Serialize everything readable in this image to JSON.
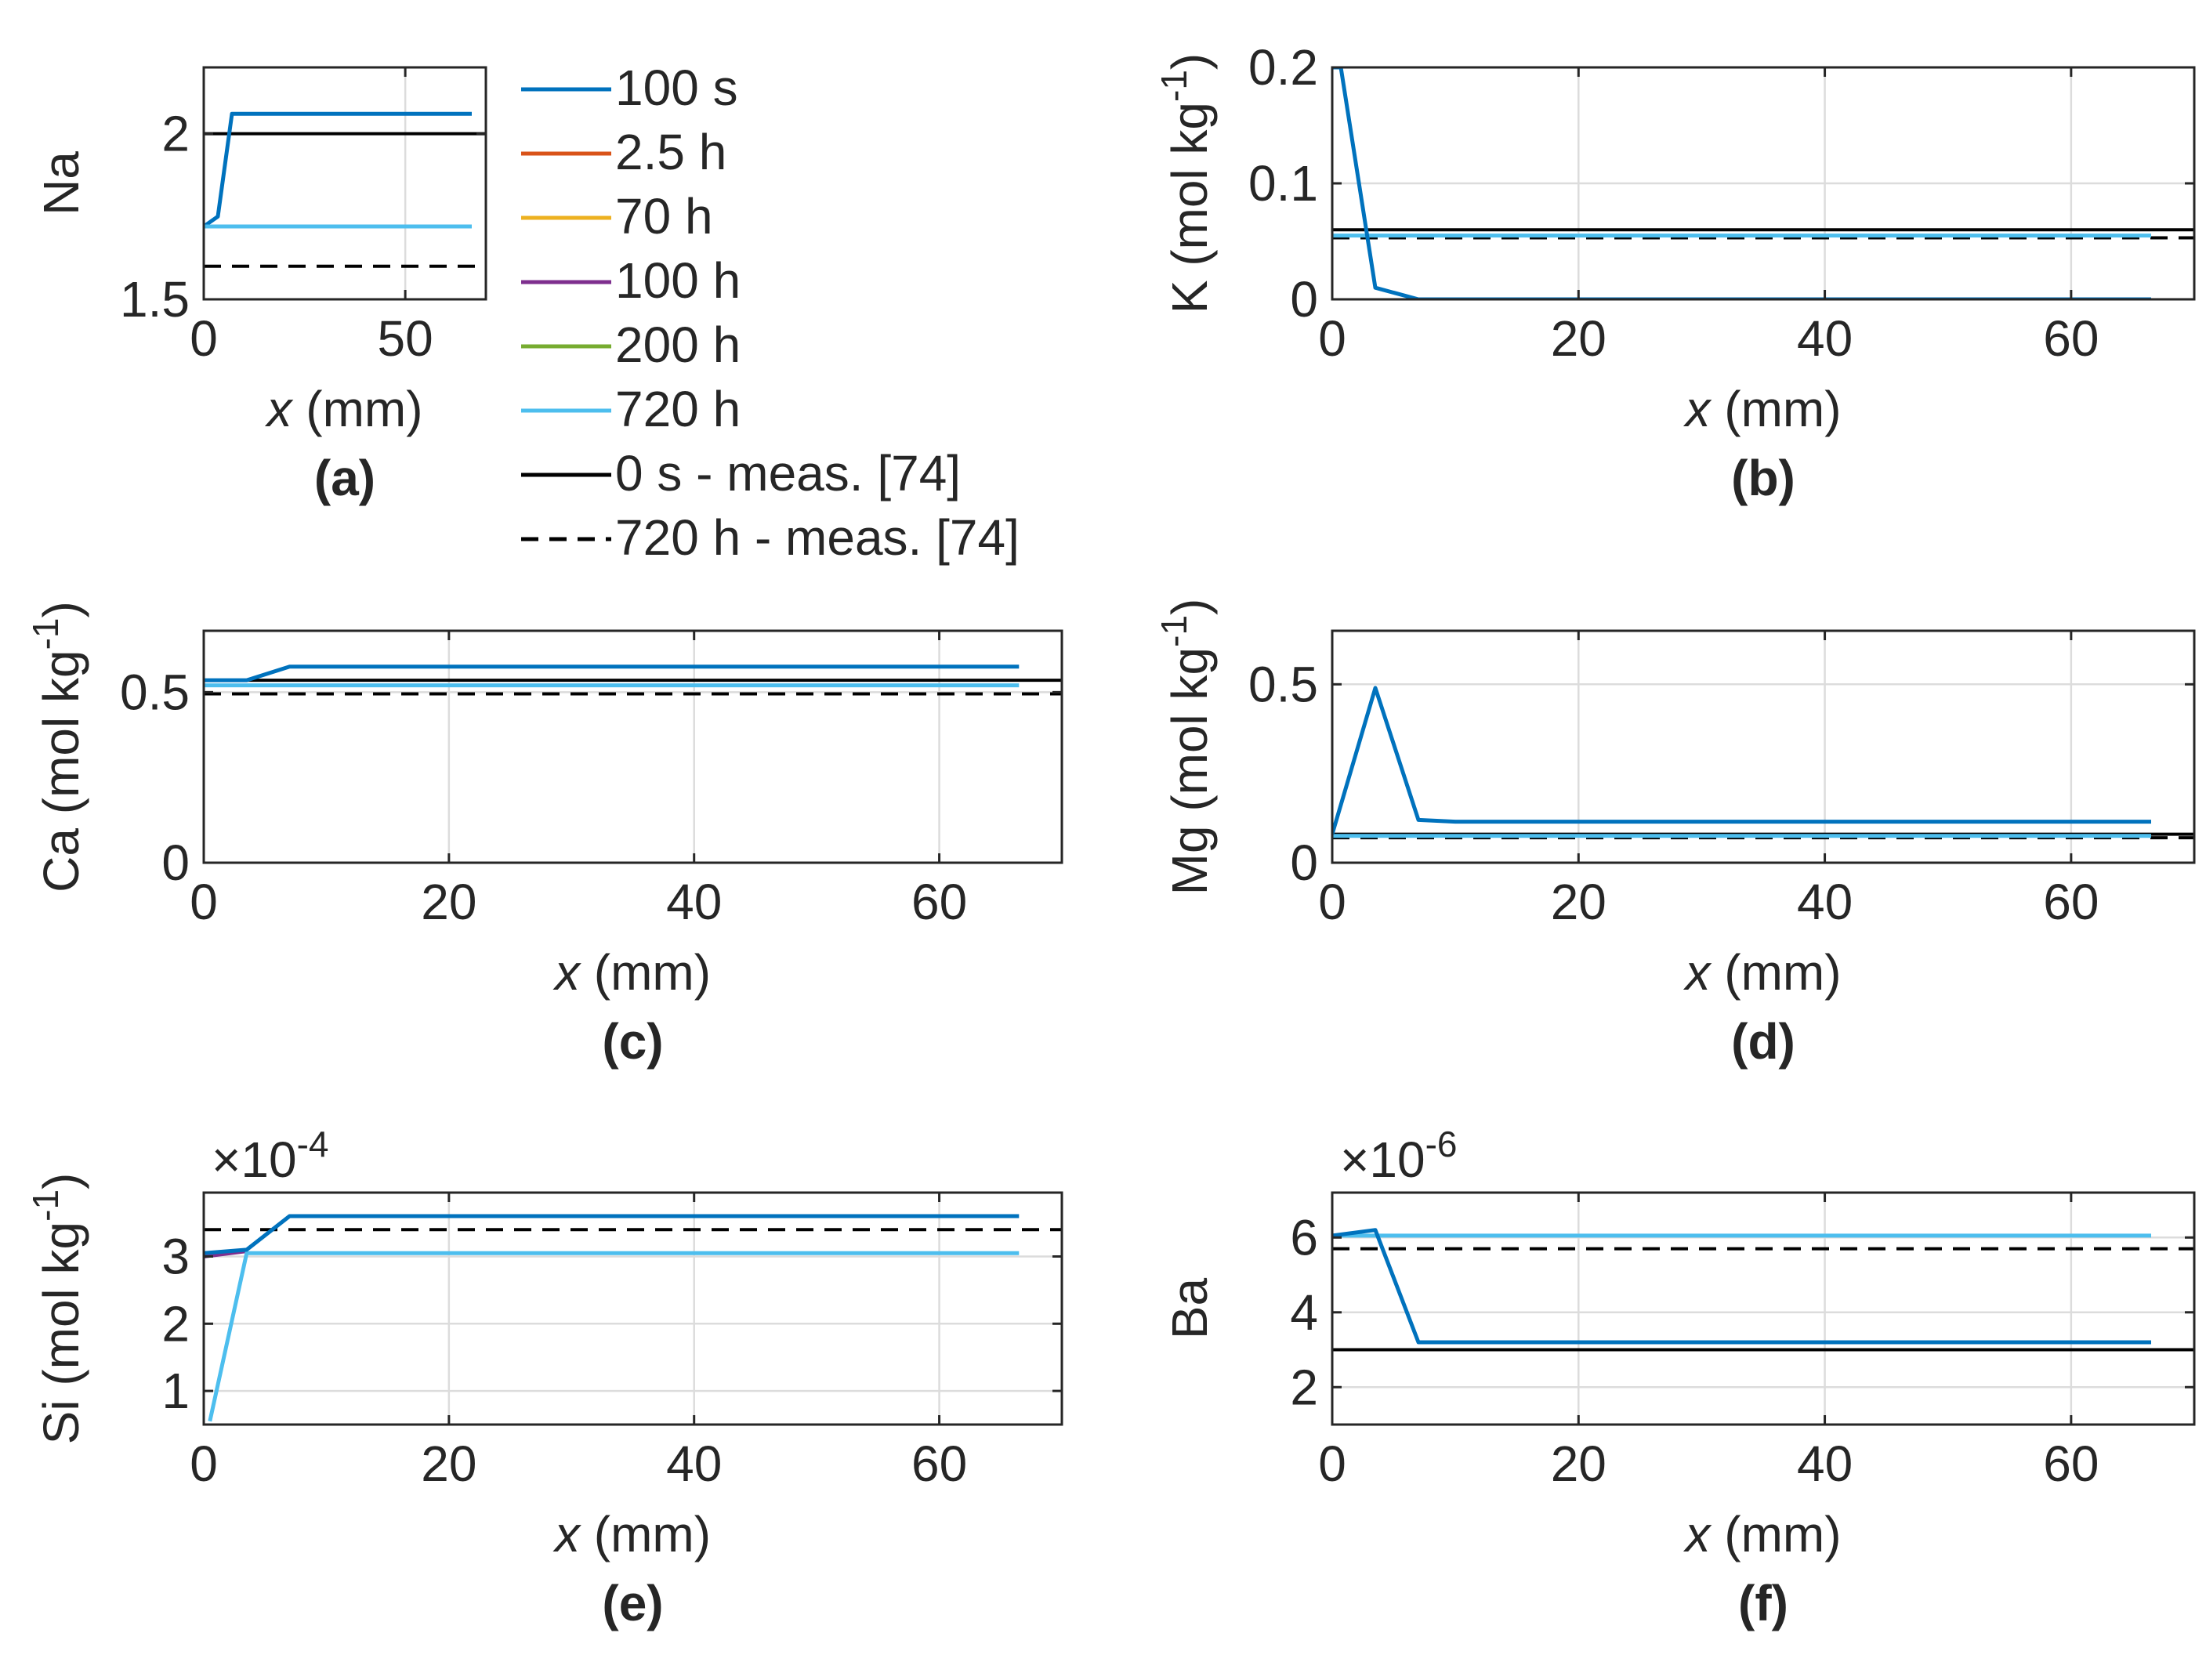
{
  "colors": {
    "s100s": "#0072BD",
    "s2_5h": "#D95319",
    "s70h": "#EDB120",
    "s100h": "#7E2F8E",
    "s200h": "#77AC30",
    "s720h": "#4DBEEE",
    "meas": "#000000",
    "grid": "#DCDCDC",
    "axis": "#262626"
  },
  "legend": {
    "position": "between panels (a) and (b)",
    "entries": [
      {
        "label": "100 s",
        "style": "solid",
        "color_key": "s100s"
      },
      {
        "label": "2.5 h",
        "style": "solid",
        "color_key": "s2_5h"
      },
      {
        "label": "70 h",
        "style": "solid",
        "color_key": "s70h"
      },
      {
        "label": "100 h",
        "style": "solid",
        "color_key": "s100h"
      },
      {
        "label": "200 h",
        "style": "solid",
        "color_key": "s200h"
      },
      {
        "label": "720 h",
        "style": "solid",
        "color_key": "s720h"
      },
      {
        "label": "0 s - meas. [74]",
        "style": "solid",
        "color_key": "meas"
      },
      {
        "label": "720 h - meas. [74]",
        "style": "dashed",
        "color_key": "meas"
      }
    ]
  },
  "chart_data": [
    {
      "id": "a",
      "type": "line",
      "panel_label": "(a)",
      "xlabel_italic": "x",
      "xlabel_rest": " (mm)",
      "ylabel_main": "Na",
      "ylabel_unit": "",
      "xlim": [
        0,
        70
      ],
      "ylim": [
        1.5,
        2.2
      ],
      "xticks": [
        0,
        50
      ],
      "yticks": [
        1.5,
        2
      ],
      "xtick_labels": [
        "0",
        "50"
      ],
      "ytick_labels": [
        "1.5",
        "2"
      ],
      "exponent": "",
      "grid": true,
      "series": [
        {
          "name": "100 s",
          "color_key": "s100s",
          "x": [
            0,
            3.5,
            7,
            66.5
          ],
          "y": [
            1.72,
            1.75,
            2.06,
            2.06
          ]
        },
        {
          "name": "720 h",
          "color_key": "s720h",
          "x": [
            0,
            66.5
          ],
          "y": [
            1.72,
            1.72
          ]
        }
      ],
      "hlines": [
        {
          "name": "0 s - meas. [74]",
          "y": 2.0,
          "style": "solid"
        },
        {
          "name": "720 h - meas. [74]",
          "y": 1.6,
          "style": "dashed"
        }
      ]
    },
    {
      "id": "b",
      "type": "line",
      "panel_label": "(b)",
      "xlabel_italic": "x",
      "xlabel_rest": " (mm)",
      "ylabel_main": "K (mol kg",
      "ylabel_unit": "-1",
      "xlim": [
        0,
        70
      ],
      "ylim": [
        0,
        0.2
      ],
      "xticks": [
        0,
        20,
        40,
        60
      ],
      "yticks": [
        0,
        0.1,
        0.2
      ],
      "xtick_labels": [
        "0",
        "20",
        "40",
        "60"
      ],
      "ytick_labels": [
        "0",
        "0.1",
        "0.2"
      ],
      "exponent": "",
      "grid": true,
      "series": [
        {
          "name": "720 h",
          "color_key": "s720h",
          "x": [
            0,
            66.5
          ],
          "y": [
            0.055,
            0.055
          ]
        },
        {
          "name": "100 s",
          "color_key": "s100s",
          "x": [
            0,
            0.7,
            3.5,
            7,
            66.5
          ],
          "y": [
            0.2,
            0.2,
            0.01,
            0.0,
            0.0
          ]
        }
      ],
      "hlines": [
        {
          "name": "0 s - meas. [74]",
          "y": 0.06,
          "style": "solid"
        },
        {
          "name": "720 h - meas. [74]",
          "y": 0.053,
          "style": "dashed"
        }
      ]
    },
    {
      "id": "c",
      "type": "line",
      "panel_label": "(c)",
      "xlabel_italic": "x",
      "xlabel_rest": " (mm)",
      "ylabel_main": "Ca (mol kg",
      "ylabel_unit": "-1",
      "xlim": [
        0,
        70
      ],
      "ylim": [
        0,
        0.68
      ],
      "xticks": [
        0,
        20,
        40,
        60
      ],
      "yticks": [
        0,
        0.5
      ],
      "xtick_labels": [
        "0",
        "20",
        "40",
        "60"
      ],
      "ytick_labels": [
        "0",
        "0.5"
      ],
      "exponent": "",
      "grid": true,
      "series": [
        {
          "name": "720 h",
          "color_key": "s720h",
          "x": [
            0,
            66.5
          ],
          "y": [
            0.52,
            0.52
          ]
        },
        {
          "name": "100 s",
          "color_key": "s100s",
          "x": [
            0,
            3.5,
            7,
            66.5
          ],
          "y": [
            0.535,
            0.535,
            0.575,
            0.575
          ]
        }
      ],
      "hlines": [
        {
          "name": "0 s - meas. [74]",
          "y": 0.535,
          "style": "solid"
        },
        {
          "name": "720 h - meas. [74]",
          "y": 0.495,
          "style": "dashed"
        }
      ]
    },
    {
      "id": "d",
      "type": "line",
      "panel_label": "(d)",
      "xlabel_italic": "x",
      "xlabel_rest": " (mm)",
      "ylabel_main": "Mg (mol kg",
      "ylabel_unit": "-1",
      "xlim": [
        0,
        70
      ],
      "ylim": [
        0,
        0.65
      ],
      "xticks": [
        0,
        20,
        40,
        60
      ],
      "yticks": [
        0,
        0.5
      ],
      "xtick_labels": [
        "0",
        "20",
        "40",
        "60"
      ],
      "ytick_labels": [
        "0",
        "0.5"
      ],
      "exponent": "",
      "grid": true,
      "series": [
        {
          "name": "720 h",
          "color_key": "s720h",
          "x": [
            0,
            66.5
          ],
          "y": [
            0.075,
            0.075
          ]
        },
        {
          "name": "100 s",
          "color_key": "s100s",
          "x": [
            0,
            3.5,
            7,
            10,
            66.5
          ],
          "y": [
            0.08,
            0.49,
            0.12,
            0.115,
            0.115
          ]
        }
      ],
      "hlines": [
        {
          "name": "0 s - meas. [74]",
          "y": 0.08,
          "style": "solid"
        },
        {
          "name": "720 h - meas. [74]",
          "y": 0.07,
          "style": "dashed"
        }
      ]
    },
    {
      "id": "e",
      "type": "line",
      "panel_label": "(e)",
      "xlabel_italic": "x",
      "xlabel_rest": " (mm)",
      "ylabel_main": "Si (mol kg",
      "ylabel_unit": "-1",
      "xlim": [
        0,
        70
      ],
      "ylim": [
        0.5,
        3.95
      ],
      "xticks": [
        0,
        20,
        40,
        60
      ],
      "yticks": [
        1,
        2,
        3
      ],
      "xtick_labels": [
        "0",
        "20",
        "40",
        "60"
      ],
      "ytick_labels": [
        "1",
        "2",
        "3"
      ],
      "exponent": "-4",
      "grid": true,
      "series": [
        {
          "name": "100 h",
          "color_key": "s100h",
          "x": [
            0,
            3.5
          ],
          "y": [
            3.0,
            3.08
          ]
        },
        {
          "name": "720 h",
          "color_key": "s720h",
          "x": [
            0.5,
            3.5,
            66.5
          ],
          "y": [
            0.55,
            3.05,
            3.05
          ]
        },
        {
          "name": "100 s",
          "color_key": "s100s",
          "x": [
            0,
            3.5,
            7,
            66.5
          ],
          "y": [
            3.05,
            3.1,
            3.6,
            3.6
          ]
        }
      ],
      "hlines": [
        {
          "name": "720 h - meas. [74]",
          "y": 3.4,
          "style": "dashed"
        }
      ]
    },
    {
      "id": "f",
      "type": "line",
      "panel_label": "(f)",
      "xlabel_italic": "x",
      "xlabel_rest": " (mm)",
      "ylabel_main": "Ba",
      "ylabel_unit": "",
      "xlim": [
        0,
        70
      ],
      "ylim": [
        1,
        7.2
      ],
      "xticks": [
        0,
        20,
        40,
        60
      ],
      "yticks": [
        2,
        4,
        6
      ],
      "xtick_labels": [
        "0",
        "20",
        "40",
        "60"
      ],
      "ytick_labels": [
        "2",
        "4",
        "6"
      ],
      "exponent": "-6",
      "grid": true,
      "series": [
        {
          "name": "720 h",
          "color_key": "s720h",
          "x": [
            0,
            66.5
          ],
          "y": [
            6.05,
            6.05
          ]
        },
        {
          "name": "100 s",
          "color_key": "s100s",
          "x": [
            0,
            3.5,
            7,
            66.5
          ],
          "y": [
            6.05,
            6.2,
            3.2,
            3.2
          ]
        }
      ],
      "hlines": [
        {
          "name": "0 s - meas. [74]",
          "y": 3.0,
          "style": "solid"
        },
        {
          "name": "720 h - meas. [74]",
          "y": 5.7,
          "style": "dashed"
        }
      ]
    }
  ]
}
